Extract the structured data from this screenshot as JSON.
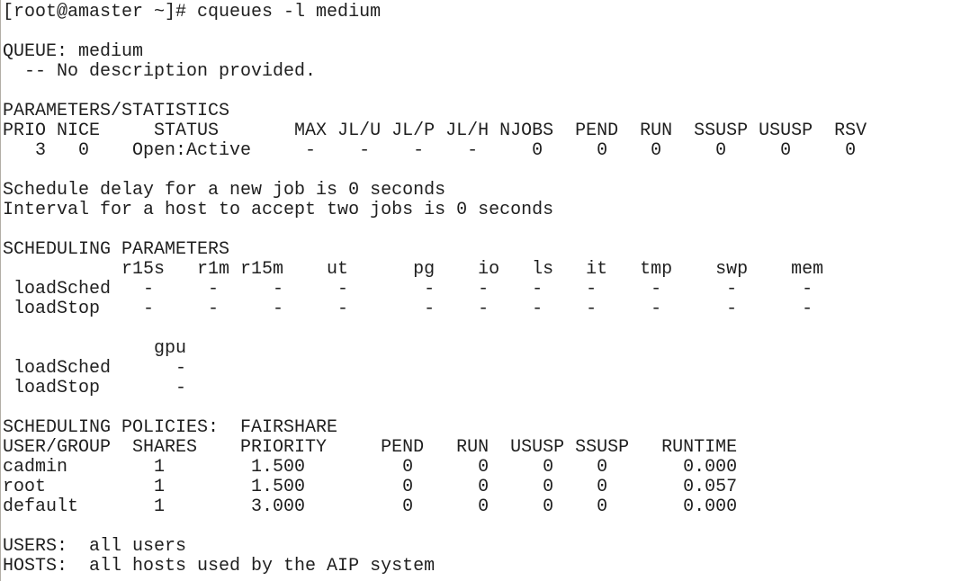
{
  "colors": {
    "background": "#ffffff",
    "text": "#1f1f1f",
    "window_edge": "#b3aea6"
  },
  "shell": {
    "prompt": "[root@amaster ~]#",
    "command": "cqueues -l medium"
  },
  "queue": {
    "label": "QUEUE:",
    "name": "medium",
    "description": "-- No description provided."
  },
  "parameters_statistics": {
    "title": "PARAMETERS/STATISTICS",
    "headers": [
      "PRIO",
      "NICE",
      "STATUS",
      "MAX",
      "JL/U",
      "JL/P",
      "JL/H",
      "NJOBS",
      "PEND",
      "RUN",
      "SSUSP",
      "USUSP",
      "RSV"
    ],
    "rows": [
      [
        "3",
        "0",
        "Open:Active",
        "-",
        "-",
        "-",
        "-",
        "0",
        "0",
        "0",
        "0",
        "0",
        "0"
      ]
    ]
  },
  "schedule_notes": [
    "Schedule delay for a new job is 0 seconds",
    "Interval for a host to accept two jobs is 0 seconds"
  ],
  "scheduling_parameters": {
    "title": "SCHEDULING PARAMETERS",
    "columns": [
      "r15s",
      "r1m",
      "r15m",
      "ut",
      "pg",
      "io",
      "ls",
      "it",
      "tmp",
      "swp",
      "mem"
    ],
    "rows": [
      {
        "name": "loadSched",
        "values": [
          "-",
          "-",
          "-",
          "-",
          "-",
          "-",
          "-",
          "-",
          "-",
          "-",
          "-"
        ]
      },
      {
        "name": "loadStop",
        "values": [
          "-",
          "-",
          "-",
          "-",
          "-",
          "-",
          "-",
          "-",
          "-",
          "-",
          "-"
        ]
      }
    ],
    "gpu_columns": [
      "gpu"
    ],
    "gpu_rows": [
      {
        "name": "loadSched",
        "values": [
          "-"
        ]
      },
      {
        "name": "loadStop",
        "values": [
          "-"
        ]
      }
    ]
  },
  "scheduling_policies": {
    "title": "SCHEDULING POLICIES:",
    "policy": "FAIRSHARE",
    "headers": [
      "USER/GROUP",
      "SHARES",
      "PRIORITY",
      "PEND",
      "RUN",
      "USUSP",
      "SSUSP",
      "RUNTIME"
    ],
    "rows": [
      [
        "cadmin",
        "1",
        "1.500",
        "0",
        "0",
        "0",
        "0",
        "0.000"
      ],
      [
        "root",
        "1",
        "1.500",
        "0",
        "0",
        "0",
        "0",
        "0.057"
      ],
      [
        "default",
        "1",
        "3.000",
        "0",
        "0",
        "0",
        "0",
        "0.000"
      ]
    ]
  },
  "users": {
    "label": "USERS:",
    "value": "all users"
  },
  "hosts": {
    "label": "HOSTS:",
    "value": "all hosts used by the AIP system"
  },
  "screen_lines": [
    "[root@amaster ~]# cqueues -l medium",
    "",
    "QUEUE: medium",
    "  -- No description provided.",
    "",
    "PARAMETERS/STATISTICS",
    "PRIO NICE     STATUS       MAX JL/U JL/P JL/H NJOBS  PEND  RUN  SSUSP USUSP  RSV",
    "   3   0    Open:Active     -    -    -    -     0     0    0     0     0     0",
    "",
    "Schedule delay for a new job is 0 seconds",
    "Interval for a host to accept two jobs is 0 seconds",
    "",
    "SCHEDULING PARAMETERS",
    "           r15s   r1m r15m    ut      pg    io   ls   it   tmp    swp    mem",
    " loadSched   -     -     -     -       -    -    -    -     -      -      -",
    " loadStop    -     -     -     -       -    -    -    -     -      -      -",
    "",
    "              gpu",
    " loadSched      -",
    " loadStop       -",
    "",
    "SCHEDULING POLICIES:  FAIRSHARE",
    "USER/GROUP  SHARES    PRIORITY     PEND   RUN  USUSP SSUSP   RUNTIME",
    "cadmin        1        1.500         0      0     0    0       0.000",
    "root          1        1.500         0      0     0    0       0.057",
    "default       1        3.000         0      0     0    0       0.000",
    "",
    "USERS:  all users",
    "HOSTS:  all hosts used by the AIP system"
  ]
}
